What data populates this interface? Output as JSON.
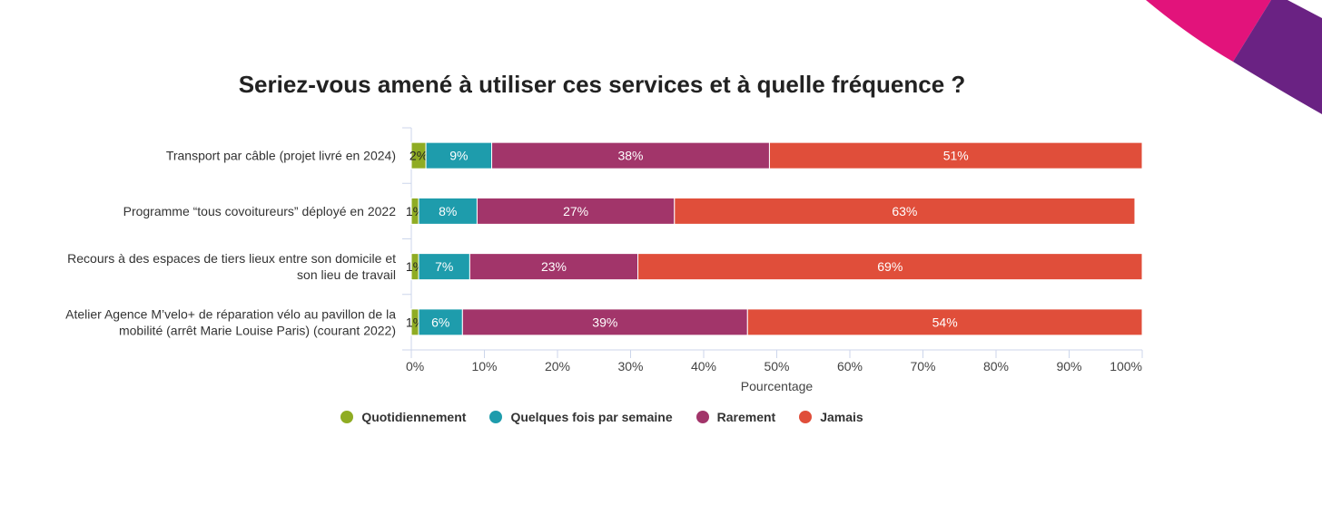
{
  "chart_data": {
    "type": "bar",
    "orientation": "horizontal",
    "stacked": "percent",
    "title": "Seriez-vous amené à utiliser ces services et à quelle fréquence ?",
    "xlabel": "Pourcentage",
    "ylabel": "",
    "xlim": [
      0,
      100
    ],
    "x_ticks": [
      "0%",
      "10%",
      "20%",
      "30%",
      "40%",
      "50%",
      "60%",
      "70%",
      "80%",
      "90%",
      "100%"
    ],
    "legend_position": "bottom",
    "grid": false,
    "categories": [
      [
        "Transport par câble (projet livré en 2024)"
      ],
      [
        "Programme “tous covoitureurs” déployé en 2022"
      ],
      [
        "Recours à des espaces de tiers lieux entre son domicile et",
        "son lieu de travail"
      ],
      [
        "Atelier Agence M’velo+ de réparation vélo au pavillon de la",
        "mobilité (arrêt Marie Louise Paris) (courant 2022)"
      ]
    ],
    "series": [
      {
        "name": "Quotidiennement",
        "color": "#8fac23",
        "values": [
          2,
          1,
          1,
          1
        ],
        "labels": [
          "2%",
          "1%",
          "1%",
          "1%"
        ],
        "label_color": "#222222"
      },
      {
        "name": "Quelques fois par semaine",
        "color": "#1e9cac",
        "values": [
          9,
          8,
          7,
          6
        ],
        "labels": [
          "9%",
          "8%",
          "7%",
          "6%"
        ],
        "label_color": "#ffffff"
      },
      {
        "name": "Rarement",
        "color": "#a2356a",
        "values": [
          38,
          27,
          23,
          39
        ],
        "labels": [
          "38%",
          "27%",
          "23%",
          "39%"
        ],
        "label_color": "#ffffff"
      },
      {
        "name": "Jamais",
        "color": "#e04e3a",
        "values": [
          51,
          63,
          69,
          54
        ],
        "labels": [
          "51%",
          "63%",
          "69%",
          "54%"
        ],
        "label_color": "#ffffff"
      }
    ]
  }
}
